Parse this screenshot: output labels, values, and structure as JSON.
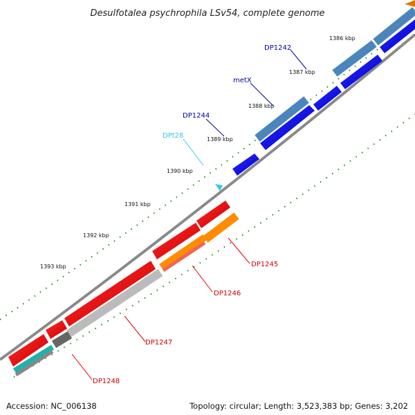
{
  "title": "Desulfotalea psychrophila LSv54, complete genome",
  "footer": {
    "accession": "Accession: NC_006138",
    "summary": "Topology: circular; Length: 3,523,383 bp; Genes: 3,202"
  },
  "colors": {
    "backbone": "#808080",
    "tick_marks": "#1a8a1a",
    "forward_gene": "#0000ee",
    "forward_label": "#0000aa",
    "reverse_gene": "#ee0000",
    "reverse_label": "#cc0000",
    "trna": "#33c8e8",
    "cds_forward": "#4a86bb",
    "cds_reverse": "#bbbbbb",
    "cds_orange": "#ff8c00",
    "cds_salmon": "#ee6655",
    "cds_teal": "#20b2aa",
    "cds_dark": "#666666"
  },
  "scale_ticks": [
    "1386 kbp",
    "1387 kbp",
    "1388 kbp",
    "1389 kbp",
    "1390 kbp",
    "1391 kbp",
    "1392 kbp",
    "1393 kbp"
  ],
  "gene_labels": [
    {
      "name": "DP1242",
      "strand": "forward"
    },
    {
      "name": "metX",
      "strand": "forward"
    },
    {
      "name": "DP1244",
      "strand": "forward"
    },
    {
      "name": "DPt28",
      "strand": "trna"
    },
    {
      "name": "DP1245",
      "strand": "reverse"
    },
    {
      "name": "DP1246",
      "strand": "reverse"
    },
    {
      "name": "DP1247",
      "strand": "reverse"
    },
    {
      "name": "DP1248",
      "strand": "reverse"
    }
  ]
}
